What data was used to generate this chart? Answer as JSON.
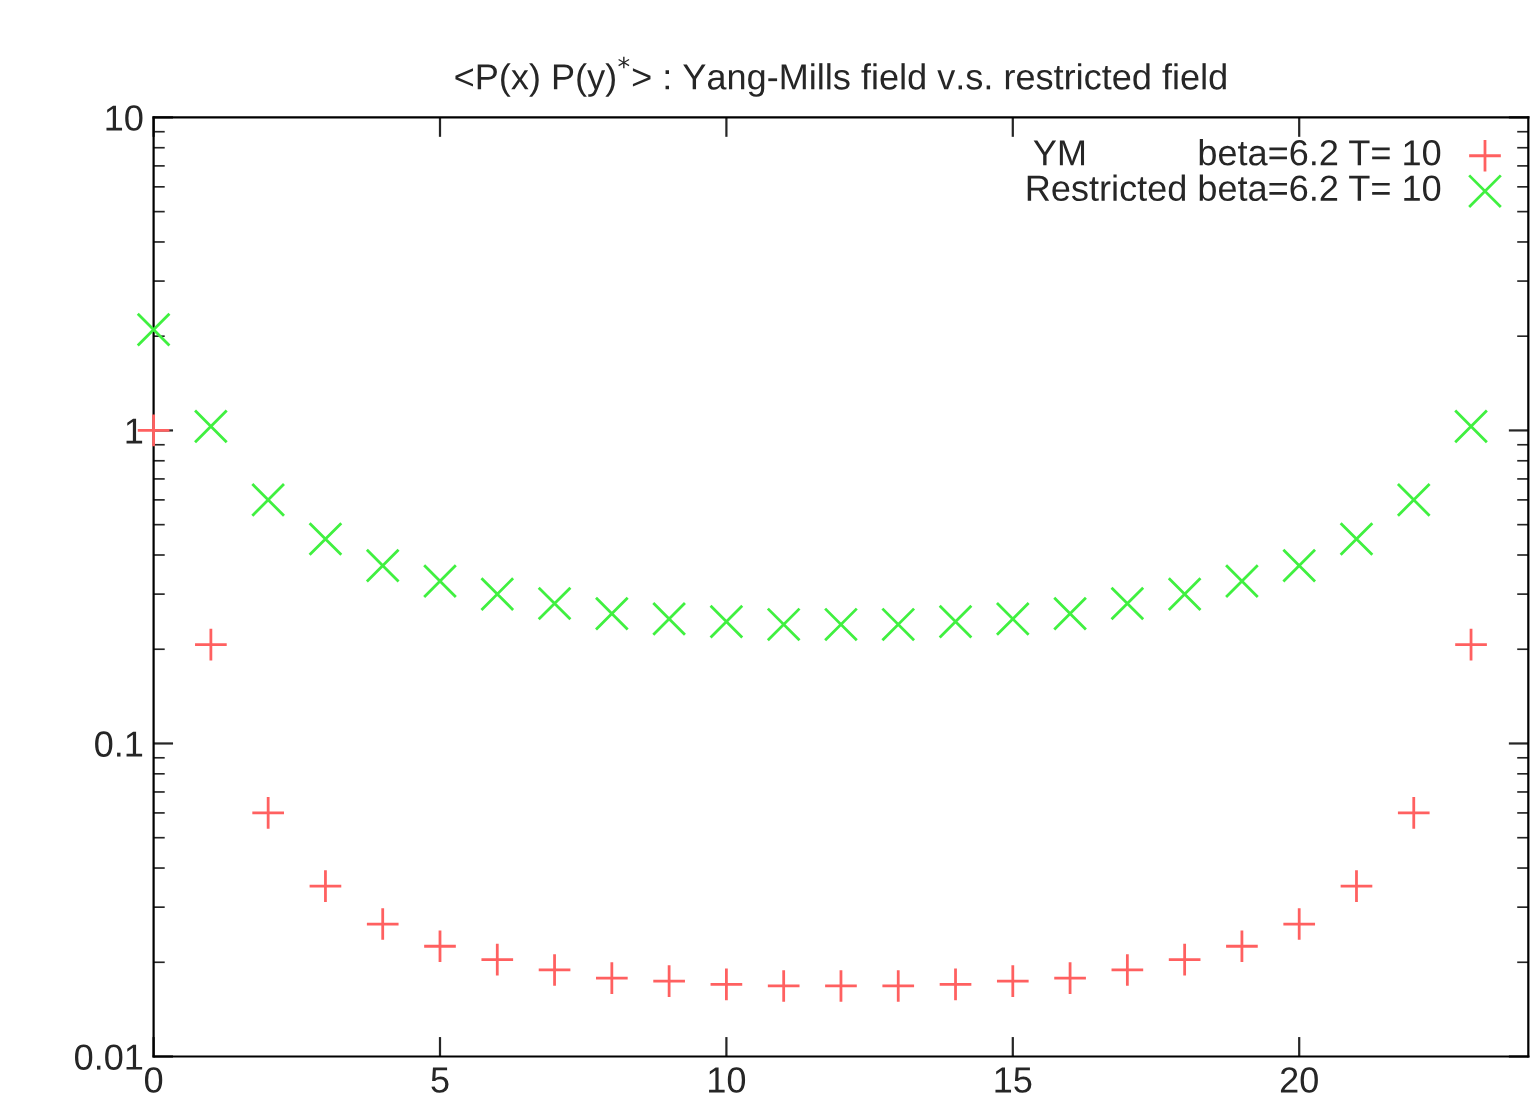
{
  "chart_data": {
    "type": "scatter",
    "title": "<P(x) P(y)$^{*}$> : Yang-Mills field v.s. restricted field",
    "x": [
      0,
      1,
      2,
      3,
      4,
      5,
      6,
      7,
      8,
      9,
      10,
      11,
      12,
      13,
      14,
      15,
      16,
      17,
      18,
      19,
      20,
      21,
      22,
      23
    ],
    "series": [
      {
        "name": "YM           beta=6.2 T= 10",
        "color": "#ff6060",
        "marker": "plus",
        "values": [
          1.0,
          0.207,
          0.06,
          0.035,
          0.0265,
          0.0225,
          0.0204,
          0.0189,
          0.0178,
          0.0174,
          0.017,
          0.0168,
          0.0168,
          0.0168,
          0.017,
          0.0174,
          0.0178,
          0.0189,
          0.0204,
          0.0225,
          0.0265,
          0.035,
          0.06,
          0.207
        ]
      },
      {
        "name": "Restricted beta=6.2 T= 10",
        "color": "#40f040",
        "marker": "cross",
        "values": [
          2.1,
          1.03,
          0.6,
          0.45,
          0.37,
          0.33,
          0.3,
          0.28,
          0.26,
          0.25,
          0.245,
          0.24,
          0.24,
          0.24,
          0.245,
          0.25,
          0.26,
          0.28,
          0.3,
          0.33,
          0.37,
          0.45,
          0.6,
          1.03
        ]
      }
    ],
    "log": "y",
    "xlim": [
      0,
      24
    ],
    "ylim": [
      0.01,
      10
    ],
    "xticks": [
      0,
      5,
      10,
      15,
      20
    ],
    "yticks": [
      0.01,
      0.1,
      1,
      10
    ],
    "legend": "top right",
    "grid": false
  }
}
